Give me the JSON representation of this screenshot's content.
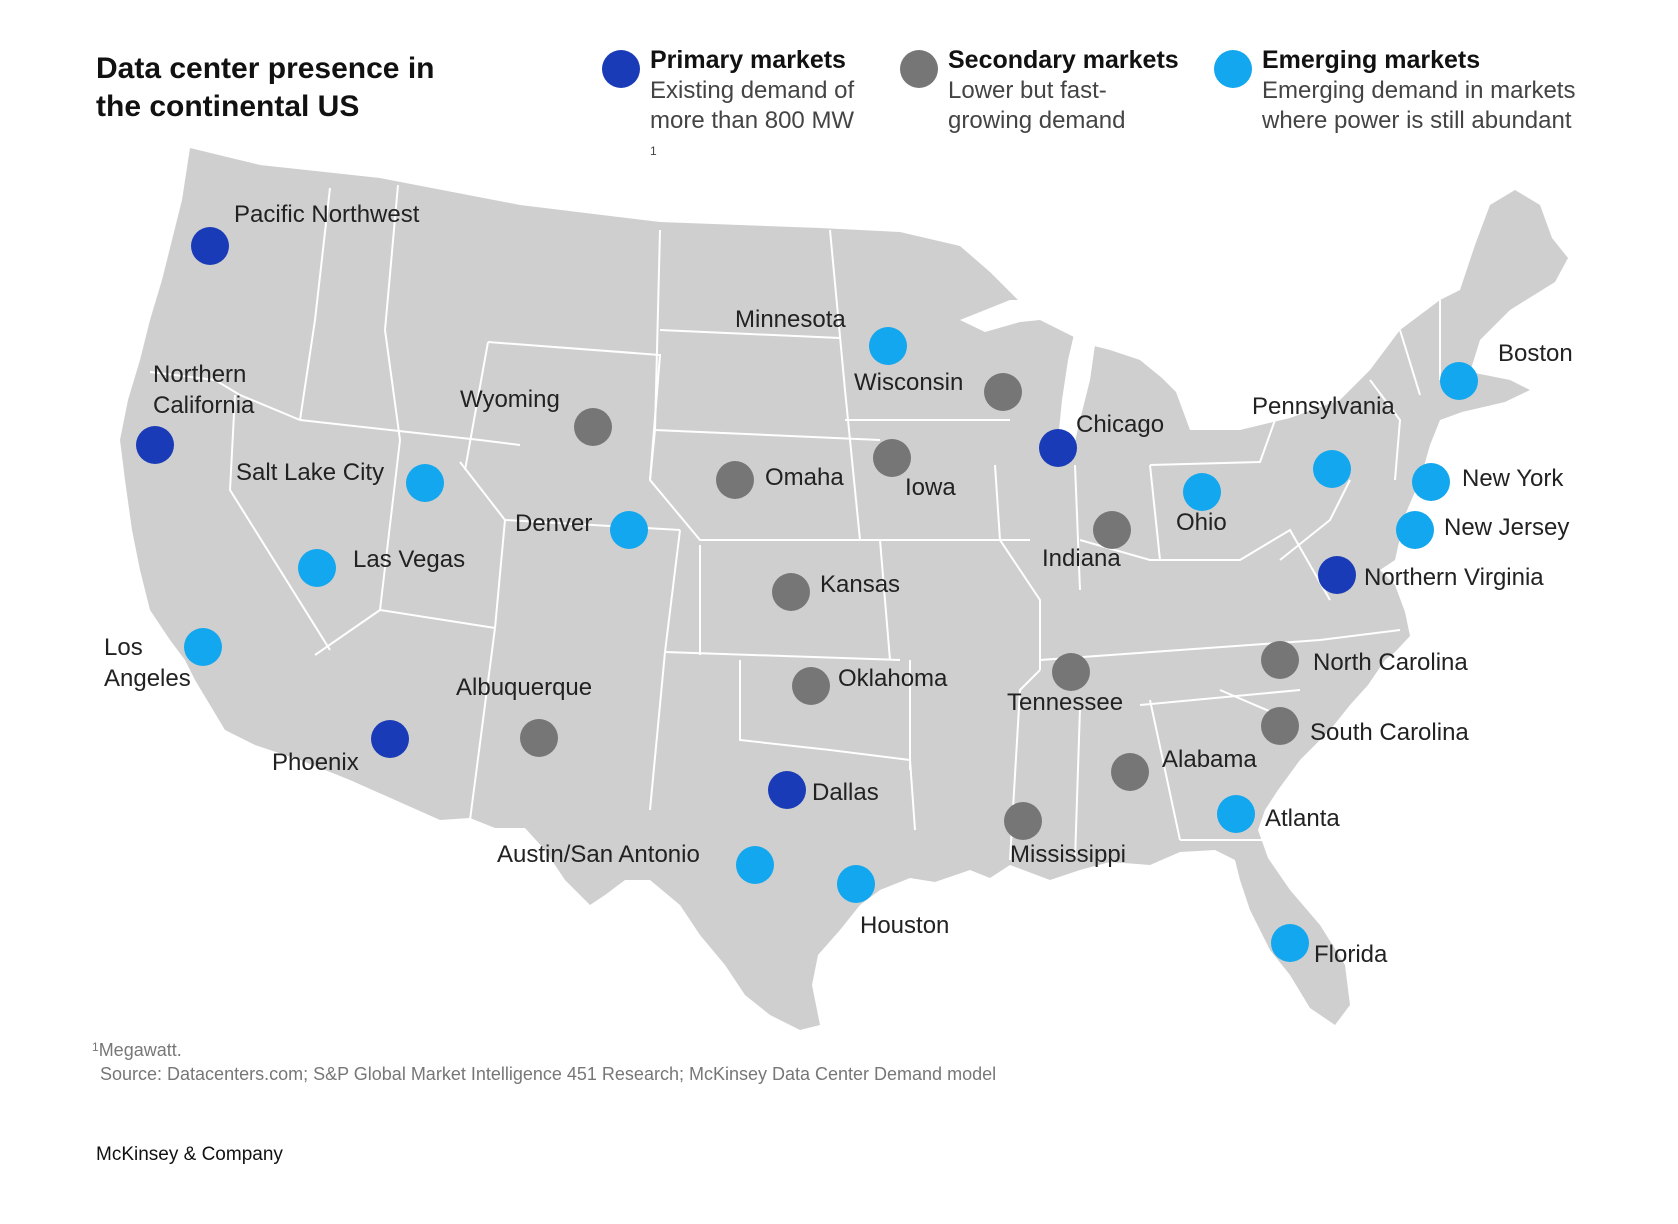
{
  "title": {
    "line1": "Data center presence in",
    "line2": "the continental US"
  },
  "legend": [
    {
      "name": "Primary markets",
      "desc1": "Existing demand of",
      "desc2": "more than 800 MW",
      "sup": "1",
      "color": "#1a3bb8"
    },
    {
      "name": "Secondary markets",
      "desc1": "Lower but fast-",
      "desc2": "growing demand",
      "sup": "",
      "color": "#767676"
    },
    {
      "name": "Emerging markets",
      "desc1": "Emerging demand in markets",
      "desc2": "where power is still abundant",
      "sup": "",
      "color": "#12a7ee"
    }
  ],
  "colors": {
    "land": "#cfcfcf",
    "border": "#ffffff",
    "primary": "#1a3bb8",
    "secondary": "#767676",
    "emerging": "#12a7ee"
  },
  "markets": [
    {
      "label": "Pacific Northwest",
      "type": "primary"
    },
    {
      "label": "Northern California",
      "type": "primary"
    },
    {
      "label": "Phoenix",
      "type": "primary"
    },
    {
      "label": "Dallas",
      "type": "primary"
    },
    {
      "label": "Chicago",
      "type": "primary"
    },
    {
      "label": "Northern Virginia",
      "type": "primary"
    },
    {
      "label": "Wyoming",
      "type": "secondary"
    },
    {
      "label": "Omaha",
      "type": "secondary"
    },
    {
      "label": "Iowa",
      "type": "secondary"
    },
    {
      "label": "Wisconsin",
      "type": "secondary"
    },
    {
      "label": "Kansas",
      "type": "secondary"
    },
    {
      "label": "Indiana",
      "type": "secondary"
    },
    {
      "label": "Oklahoma",
      "type": "secondary"
    },
    {
      "label": "Albuquerque",
      "type": "secondary"
    },
    {
      "label": "Tennessee",
      "type": "secondary"
    },
    {
      "label": "Mississippi",
      "type": "secondary"
    },
    {
      "label": "Alabama",
      "type": "secondary"
    },
    {
      "label": "North Carolina",
      "type": "secondary"
    },
    {
      "label": "South Carolina",
      "type": "secondary"
    },
    {
      "label": "Minnesota",
      "type": "emerging"
    },
    {
      "label": "Salt Lake City",
      "type": "emerging"
    },
    {
      "label": "Las Vegas",
      "type": "emerging"
    },
    {
      "label": "Denver",
      "type": "emerging"
    },
    {
      "label": "Los Angeles",
      "type": "emerging"
    },
    {
      "label": "Austin/San Antonio",
      "type": "emerging"
    },
    {
      "label": "Houston",
      "type": "emerging"
    },
    {
      "label": "Ohio",
      "type": "emerging"
    },
    {
      "label": "Pennsylvania",
      "type": "emerging"
    },
    {
      "label": "New York",
      "type": "emerging"
    },
    {
      "label": "New Jersey",
      "type": "emerging"
    },
    {
      "label": "Boston",
      "type": "emerging"
    },
    {
      "label": "Atlanta",
      "type": "emerging"
    },
    {
      "label": "Florida",
      "type": "emerging"
    }
  ],
  "footnote": {
    "sup": "1",
    "text": "Megawatt."
  },
  "source": "Source: Datacenters.com; S&P Global Market Intelligence 451 Research; McKinsey Data Center Demand model",
  "brand": "McKinsey & Company"
}
